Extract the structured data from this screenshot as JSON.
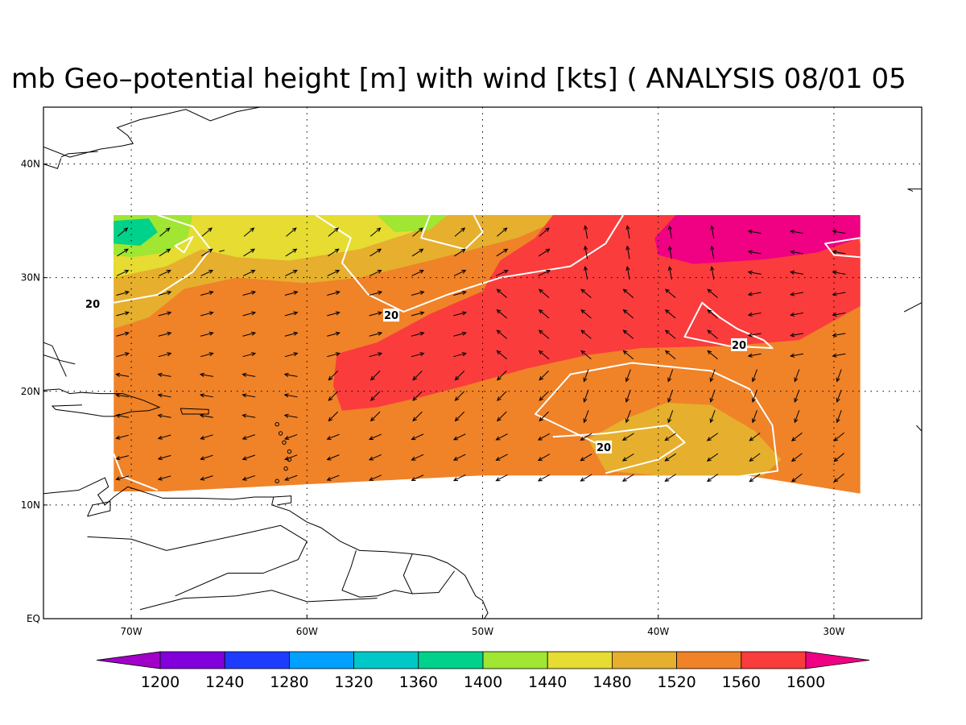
{
  "title": "mb Geo–potential height [m] with wind [kts] ( ANALYSIS 08/01 05",
  "map": {
    "lon_range": [
      -75,
      -25
    ],
    "lat_range": [
      0,
      45
    ],
    "lon_ticks": [
      {
        "value": -70,
        "label": "70W"
      },
      {
        "value": -60,
        "label": "60W"
      },
      {
        "value": -50,
        "label": "50W"
      },
      {
        "value": -40,
        "label": "40W"
      },
      {
        "value": -30,
        "label": "30W"
      }
    ],
    "lat_ticks": [
      {
        "value": 0,
        "label": "EQ"
      },
      {
        "value": 10,
        "label": "10N"
      },
      {
        "value": 20,
        "label": "20N"
      },
      {
        "value": 30,
        "label": "30N"
      },
      {
        "value": 40,
        "label": "40N"
      }
    ],
    "grid": "dotted",
    "field_domain": {
      "lon": [
        -71,
        -28.5
      ],
      "lat": [
        11,
        35.5
      ]
    }
  },
  "contour_labels": [
    {
      "text": "20",
      "lon": -72.2,
      "lat": 27.7
    },
    {
      "text": "20",
      "lon": -55.2,
      "lat": 26.7
    },
    {
      "text": "20",
      "lon": -35.4,
      "lat": 24.1
    },
    {
      "text": "20",
      "lon": -43.1,
      "lat": 15.1
    }
  ],
  "colorbar": {
    "colors": [
      "#a000c8",
      "#8200dc",
      "#1e3cff",
      "#00a0ff",
      "#00c8c8",
      "#00d28c",
      "#a0e632",
      "#e6dc32",
      "#e6af2d",
      "#f08228",
      "#fa3c3c",
      "#f00082"
    ],
    "labels": [
      "1200",
      "1240",
      "1280",
      "1320",
      "1360",
      "1400",
      "1440",
      "1480",
      "1520",
      "1560",
      "1600"
    ]
  }
}
